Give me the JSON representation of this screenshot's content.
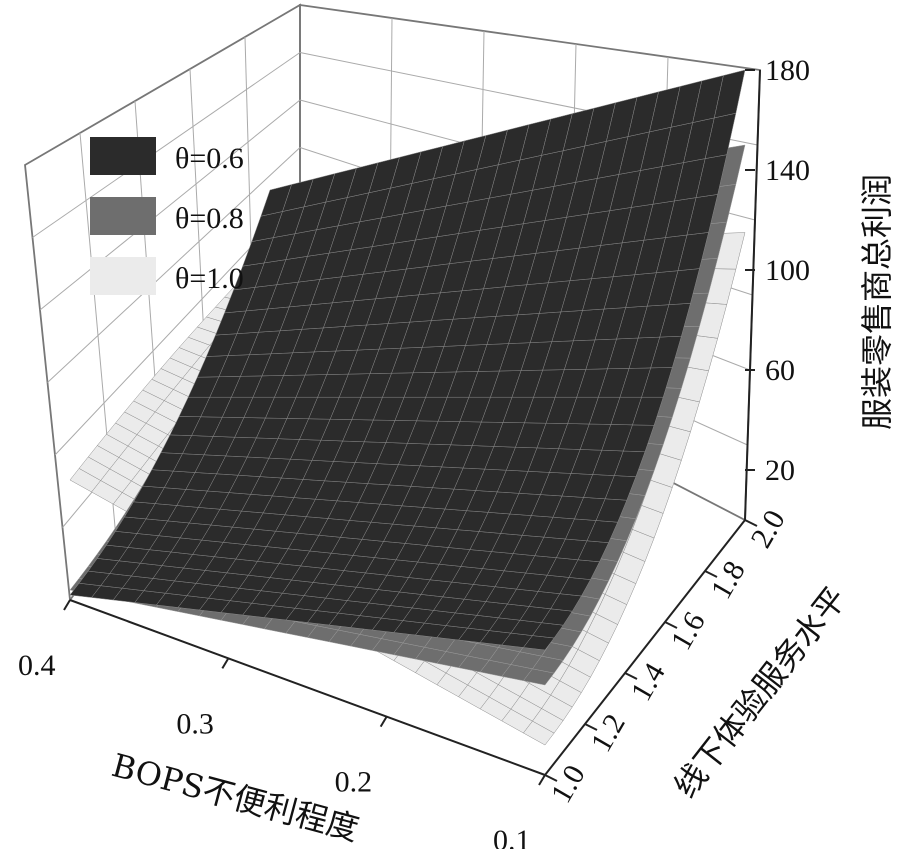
{
  "chart_data": {
    "type": "surface3d",
    "title": "",
    "xlabel": "BOPS不便利程度",
    "ylabel": "线下体验服务水平",
    "zlabel": "服装零售商总利润",
    "x_ticks": [
      "0.4",
      "0.3",
      "0.2",
      "0.1"
    ],
    "y_ticks": [
      "1.0",
      "1.2",
      "1.4",
      "1.6",
      "1.8",
      "2.0"
    ],
    "z_ticks": [
      "180",
      "140",
      "100",
      "60",
      "20"
    ],
    "xlim": [
      0.1,
      0.4
    ],
    "ylim": [
      1.0,
      2.0
    ],
    "zlim": [
      0,
      180
    ],
    "grid": true,
    "legend_position": "top-left",
    "series": [
      {
        "name": "θ=0.6",
        "color": "#2b2b2b",
        "corner_values": {
          "x0.4_y1.0": 2,
          "x0.4_y2.0": 62,
          "x0.1_y1.0": 50,
          "x0.1_y2.0": 180
        }
      },
      {
        "name": "θ=0.8",
        "color": "#6e6e6e",
        "corner_values": {
          "x0.4_y1.0": 4,
          "x0.4_y2.0": 48,
          "x0.1_y1.0": 36,
          "x0.1_y2.0": 150
        }
      },
      {
        "name": "θ=1.0",
        "color": "#ebebeb",
        "corner_values": {
          "x0.4_y1.0": 48,
          "x0.4_y2.0": 38,
          "x0.1_y1.0": 12,
          "x0.1_y2.0": 115
        }
      }
    ]
  }
}
